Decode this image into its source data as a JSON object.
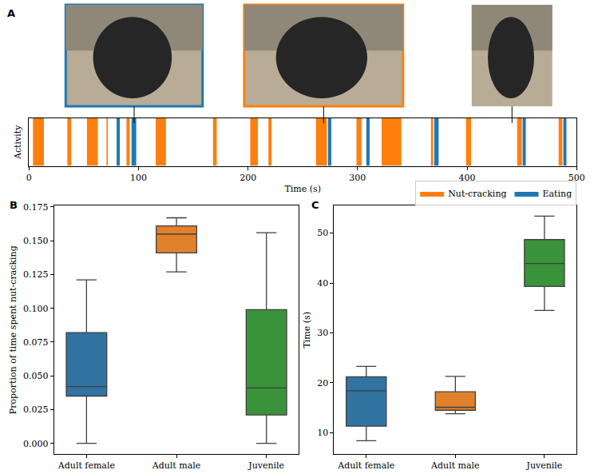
{
  "chart_data": [
    {
      "type": "timeline",
      "title": "A",
      "xlabel": "Time (s)",
      "ylabel": "Activity",
      "xlim": [
        0,
        500
      ],
      "xticks": [
        0,
        100,
        200,
        300,
        400,
        500
      ],
      "tick_labels": "x",
      "grid": false,
      "legend": "lower right",
      "series": [
        {
          "name": "Nut-cracking",
          "color": "#ff7f0e",
          "values": [
            [
              3.6,
              13.6
            ],
            [
              35,
              38.6
            ],
            [
              52.9,
              62.9
            ],
            [
              70.7,
              72
            ],
            [
              89,
              92
            ],
            [
              115.7,
              125
            ],
            [
              168,
              171.4
            ],
            [
              202,
              209
            ],
            [
              218.6,
              221.4
            ],
            [
              262,
              272
            ],
            [
              299,
              303.6
            ],
            [
              322,
              340
            ],
            [
              367,
              369
            ],
            [
              399,
              403.6
            ],
            [
              445.7,
              450
            ],
            [
              483.6,
              487
            ]
          ]
        },
        {
          "name": "Eating",
          "color": "#1f77b4",
          "values": [
            [
              80,
              82.9
            ],
            [
              93.6,
              97.9
            ],
            [
              273,
              276
            ],
            [
              308,
              311
            ],
            [
              370,
              374
            ],
            [
              450.7,
              453.6
            ],
            [
              487.9,
              490.7
            ]
          ]
        }
      ],
      "snapshots": [
        {
          "time": 96,
          "color": "#1f77b4"
        },
        {
          "time": 269,
          "color": "#ff7f0e"
        },
        {
          "time": 441
        }
      ]
    },
    {
      "type": "box",
      "title": "B",
      "ylabel": "Proportion of time spent nut-cracking",
      "categories": [
        "Adult female",
        "Adult male",
        "Juvenile"
      ],
      "colors": [
        "#3274a1",
        "#e1812c",
        "#3a923a"
      ],
      "whisker_low": [
        0.0,
        0.127,
        0.0
      ],
      "q1": [
        0.035,
        0.141,
        0.021
      ],
      "median": [
        0.042,
        0.155,
        0.041
      ],
      "q3": [
        0.082,
        0.161,
        0.099
      ],
      "whisker_high": [
        0.121,
        0.167,
        0.156
      ],
      "ylim": [
        -0.008,
        0.176
      ],
      "yticks": [
        {
          "value": 0,
          "label": "0.000"
        },
        {
          "value": 0.025,
          "label": "0.025"
        },
        {
          "value": 0.05,
          "label": "0.050"
        },
        {
          "value": 0.075,
          "label": "0.075"
        },
        {
          "value": 0.1,
          "label": "0.100"
        },
        {
          "value": 0.125,
          "label": "0.125"
        },
        {
          "value": 0.15,
          "label": "0.150"
        },
        {
          "value": 0.175,
          "label": "0.175"
        }
      ],
      "grid": false
    },
    {
      "type": "box",
      "title": "C",
      "ylabel": "Time (s)",
      "categories": [
        "Adult female",
        "Adult male",
        "Juvenile"
      ],
      "colors": [
        "#3274a1",
        "#e1812c",
        "#3a923a"
      ],
      "whisker_low": [
        8.4,
        13.8,
        34.5
      ],
      "q1": [
        11.3,
        14.5,
        39.3
      ],
      "median": [
        18.4,
        15.1,
        43.9
      ],
      "q3": [
        21.2,
        18.2,
        48.7
      ],
      "whisker_high": [
        23.3,
        21.3,
        53.4
      ],
      "ylim": [
        5.7,
        55.5
      ],
      "yticks": [
        10,
        20,
        30,
        40,
        50
      ],
      "grid": false
    }
  ]
}
